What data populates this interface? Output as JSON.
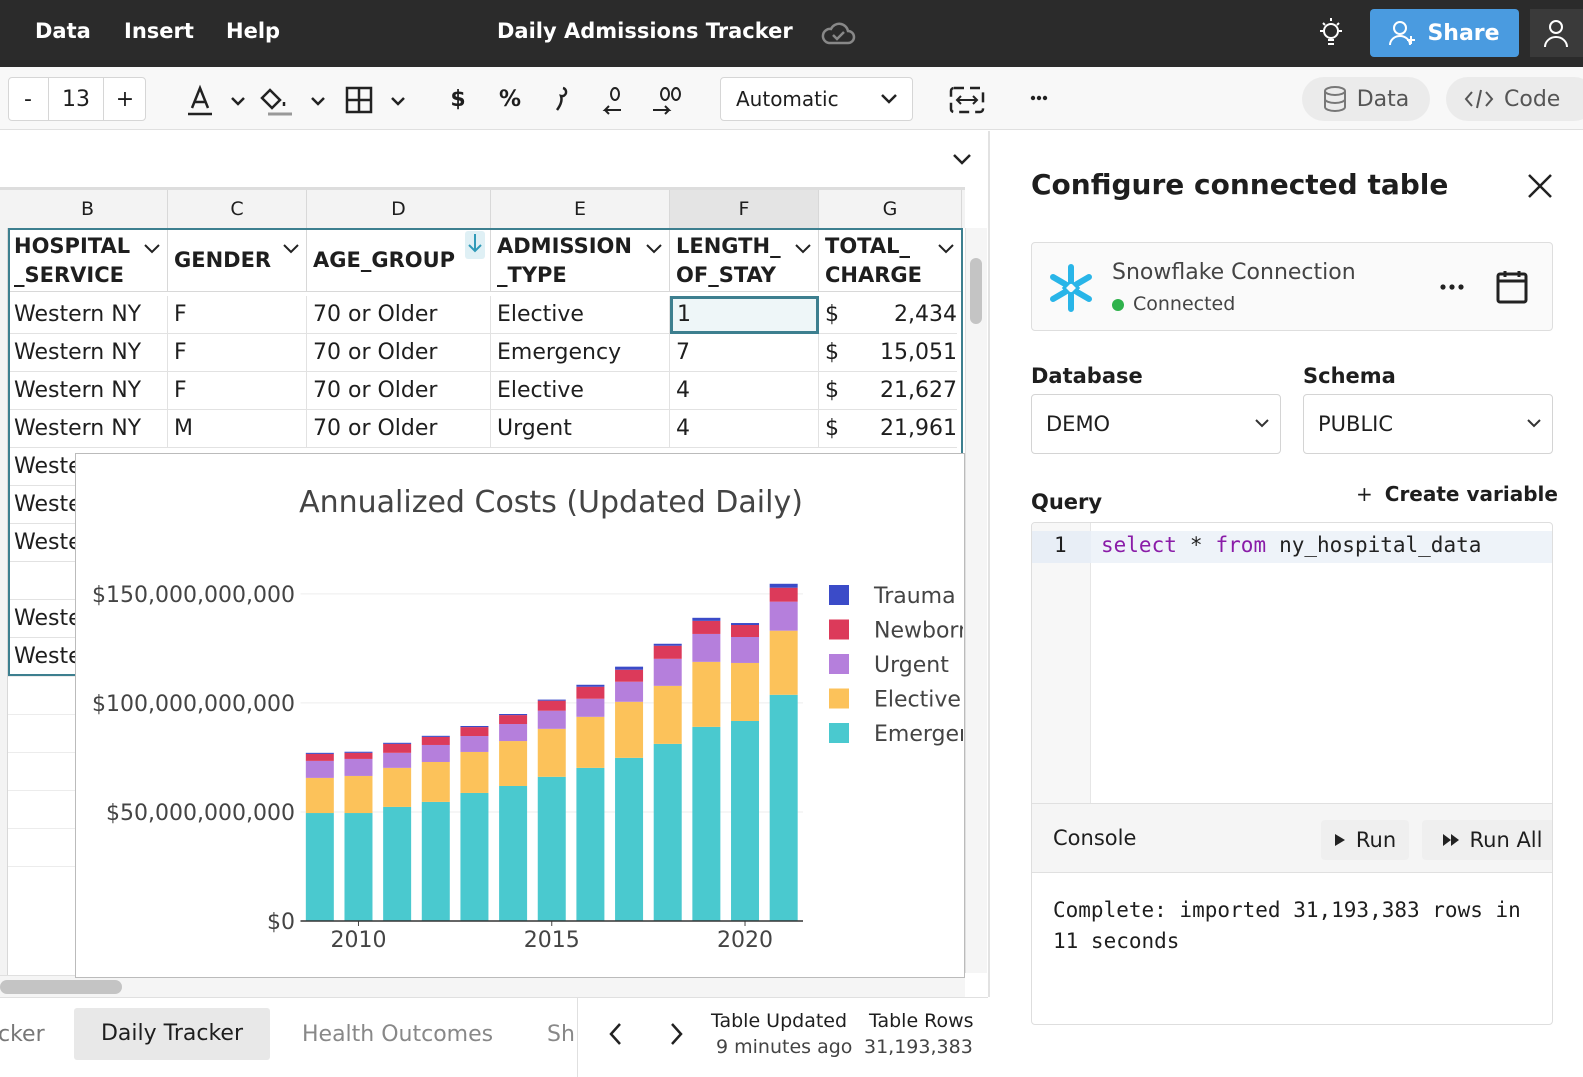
{
  "menu": [
    "Data",
    "Insert",
    "Help"
  ],
  "doc_title": "Daily Admissions Tracker",
  "share": "Share",
  "toolbar": {
    "minus": "-",
    "font_size": 13,
    "plus": "+",
    "currency": "$",
    "percent": "%",
    "format": "Automatic",
    "data_tab": "Data",
    "code_tab": "Code"
  },
  "table": {
    "columns": [
      "B",
      "C",
      "D",
      "E",
      "F",
      "G"
    ],
    "headers": [
      "HOSPITAL _SERVICE",
      "GENDER",
      "AGE_GROUP",
      "ADMISSION _TYPE",
      "LENGTH_ OF_STAY",
      "TOTAL_ CHARGE"
    ],
    "rows": [
      [
        "Western NY",
        "F",
        "70 or Older",
        "Elective",
        "1",
        "$",
        "2,434"
      ],
      [
        "Western NY",
        "F",
        "70 or Older",
        "Emergency",
        "7",
        "$",
        "15,051"
      ],
      [
        "Western NY",
        "F",
        "70 or Older",
        "Elective",
        "4",
        "$",
        "21,627"
      ],
      [
        "Western NY",
        "M",
        "70 or Older",
        "Urgent",
        "4",
        "$",
        "21,961"
      ]
    ],
    "more_rows": [
      "Western NY",
      "Western NY",
      "Western NY",
      null,
      "Western NY",
      "Western NY"
    ]
  },
  "chart_data": {
    "type": "bar",
    "stacked": true,
    "title": "Annualized Costs (Updated Daily)",
    "x": [
      2009,
      2010,
      2011,
      2012,
      2013,
      2014,
      2015,
      2016,
      2017,
      2018,
      2019,
      2020,
      2021
    ],
    "xlim": [
      2008.5,
      2021.5
    ],
    "xticks": [
      2010,
      2015,
      2020
    ],
    "ylim": [
      0,
      160000000000
    ],
    "yticks": [
      {
        "value": 0,
        "label": "$0"
      },
      {
        "value": 50000000000,
        "label": "$50,000,000,000"
      },
      {
        "value": 100000000000,
        "label": "$100,000,000,000"
      },
      {
        "value": 150000000000,
        "label": "$150,000,000,000"
      }
    ],
    "grid": true,
    "legend": "right",
    "series": [
      {
        "name": "Emergency",
        "color": "#4ac9cf",
        "values": [
          49500000000,
          49500000000,
          52300000000,
          54600000000,
          58700000000,
          61900000000,
          66100000000,
          70200000000,
          74800000000,
          81200000000,
          89000000000,
          91700000000,
          103700000000
        ]
      },
      {
        "name": "Elective",
        "color": "#fcc25a",
        "values": [
          16100000000,
          17000000000,
          17900000000,
          18300000000,
          18800000000,
          20600000000,
          22000000000,
          23400000000,
          25700000000,
          26600000000,
          29800000000,
          26600000000,
          29400000000
        ]
      },
      {
        "name": "Urgent",
        "color": "#b57fdc",
        "values": [
          7800000000,
          7800000000,
          6900000000,
          7800000000,
          7300000000,
          7800000000,
          8300000000,
          8300000000,
          9200000000,
          12400000000,
          12800000000,
          11900000000,
          13300000000
        ]
      },
      {
        "name": "Newborn",
        "color": "#dc3a5a",
        "values": [
          3200000000,
          2800000000,
          4100000000,
          3700000000,
          4100000000,
          4100000000,
          4600000000,
          5500000000,
          5500000000,
          6000000000,
          6000000000,
          5500000000,
          6400000000
        ]
      },
      {
        "name": "Trauma",
        "color": "#3b4bc8",
        "values": [
          500000000,
          500000000,
          500000000,
          500000000,
          500000000,
          500000000,
          500000000,
          900000000,
          1400000000,
          900000000,
          1400000000,
          900000000,
          1800000000
        ]
      }
    ]
  },
  "panel": {
    "title": "Configure connected table",
    "connection_name": "Snowflake Connection",
    "connection_status": "Connected",
    "database_label": "Database",
    "database": "DEMO",
    "schema_label": "Schema",
    "schema": "PUBLIC",
    "query_label": "Query",
    "create_variable": "Create variable",
    "line_number": 1,
    "code_tokens": [
      "select",
      "*",
      "from",
      "ny_hospital_data"
    ],
    "console_label": "Console",
    "run": "Run",
    "run_all": "Run All",
    "console_output": "Complete: imported 31,193,383 rows in 11 seconds"
  },
  "footer": {
    "tabs": [
      "cker",
      "Daily Tracker",
      "Health Outcomes",
      "Sh"
    ],
    "updated_label": "Table Updated",
    "updated_value": "9 minutes ago",
    "rows_label": "Table Rows",
    "rows_value": "31,193,383"
  }
}
